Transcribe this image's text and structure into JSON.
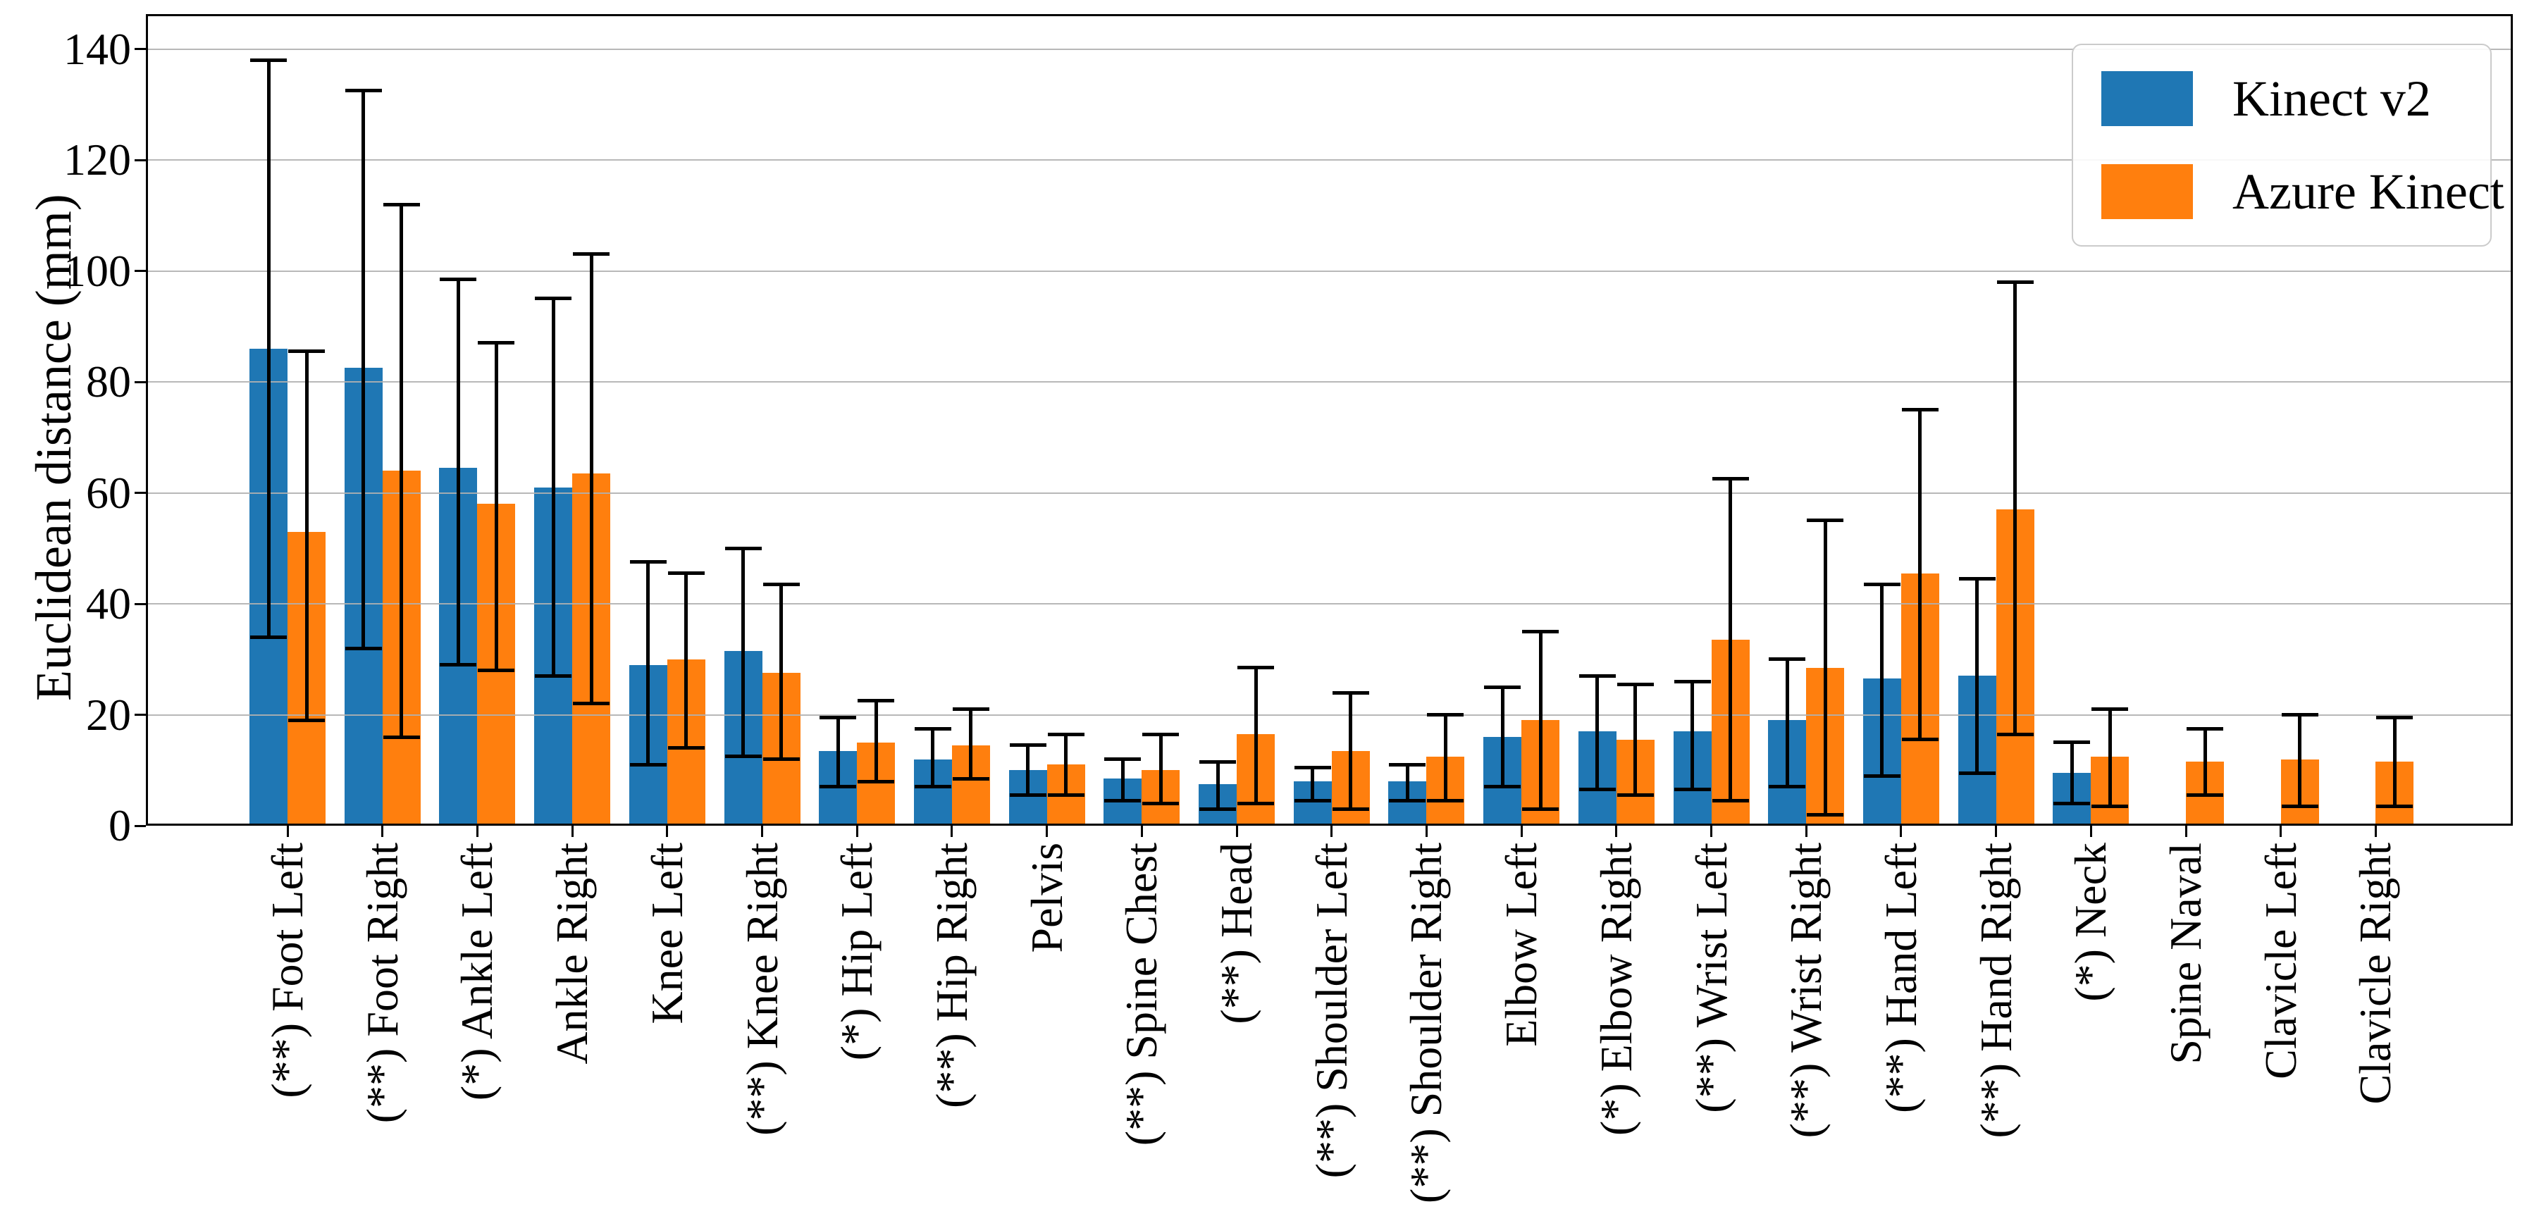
{
  "chart_data": {
    "type": "bar",
    "title": "",
    "xlabel": "",
    "ylabel": "Euclidean distance (mm)",
    "ylim": [
      0,
      146
    ],
    "yticks": [
      0,
      20,
      40,
      60,
      80,
      100,
      120,
      140
    ],
    "ytick_labels": [
      "0",
      "20",
      "40",
      "60",
      "80",
      "100",
      "120",
      "140"
    ],
    "grid": true,
    "grid_axis": "y",
    "legend_position": "upper right",
    "error_bars": true,
    "categories": [
      "(**) Foot Left",
      "(**) Foot Right",
      "(*) Ankle Left",
      "Ankle Right",
      "Knee Left",
      "(**) Knee Right",
      "(*) Hip Left",
      "(**) Hip Right",
      "Pelvis",
      "(**) Spine Chest",
      "(**) Head",
      "(**) Shoulder Left",
      "(**) Shoulder Right",
      "Elbow Left",
      "(*) Elbow Right",
      "(**) Wrist Left",
      "(**) Wrist Right",
      "(**) Hand Left",
      "(**) Hand Right",
      "(*) Neck",
      "Spine Naval",
      "Clavicle Left",
      "Clavicle Right"
    ],
    "series": [
      {
        "name": "Kinect v2",
        "color": "#1f77b4",
        "values": [
          86,
          82.5,
          64.5,
          61,
          29,
          31.5,
          13.5,
          12,
          10,
          8.5,
          7.5,
          8,
          8,
          16,
          17,
          17,
          19,
          26.5,
          27,
          9.5,
          null,
          null,
          null
        ],
        "err_low": [
          34,
          32,
          29,
          27,
          11,
          12.5,
          7,
          7,
          5.5,
          4.5,
          3,
          4.5,
          4.5,
          7,
          6.5,
          6.5,
          7,
          9,
          9.5,
          4,
          null,
          null,
          null
        ],
        "err_high": [
          138,
          132.5,
          98.5,
          95,
          47.5,
          50,
          19.5,
          17.5,
          14.5,
          12,
          11.5,
          10.5,
          11,
          25,
          27,
          26,
          30,
          43.5,
          44.5,
          15,
          null,
          null,
          null
        ]
      },
      {
        "name": "Azure Kinect",
        "color": "#ff7f0e",
        "values": [
          53,
          64,
          58,
          63.5,
          30,
          27.5,
          15,
          14.5,
          11,
          10,
          16.5,
          13.5,
          12.5,
          19,
          15.5,
          33.5,
          28.5,
          45.5,
          57,
          12.5,
          11.5,
          12,
          11.5
        ],
        "err_low": [
          19,
          16,
          28,
          22,
          14,
          12,
          8,
          8.5,
          5.5,
          4,
          4,
          3,
          4.5,
          3,
          5.5,
          4.5,
          2,
          15.5,
          16.5,
          3.5,
          5.5,
          3.5,
          3.5
        ],
        "err_high": [
          85.5,
          112,
          87,
          103,
          45.5,
          43.5,
          22.5,
          21,
          16.5,
          16.5,
          28.5,
          24,
          20,
          35,
          25.5,
          62.5,
          55,
          75,
          98,
          21,
          17.5,
          20,
          19.5
        ]
      }
    ],
    "colors": {
      "kinect_v2": "#1f77b4",
      "azure_kinect": "#ff7f0e",
      "error_bar": "#000000",
      "gridline": "#b0b0b0",
      "axes": "#000000",
      "background": "#ffffff"
    }
  }
}
